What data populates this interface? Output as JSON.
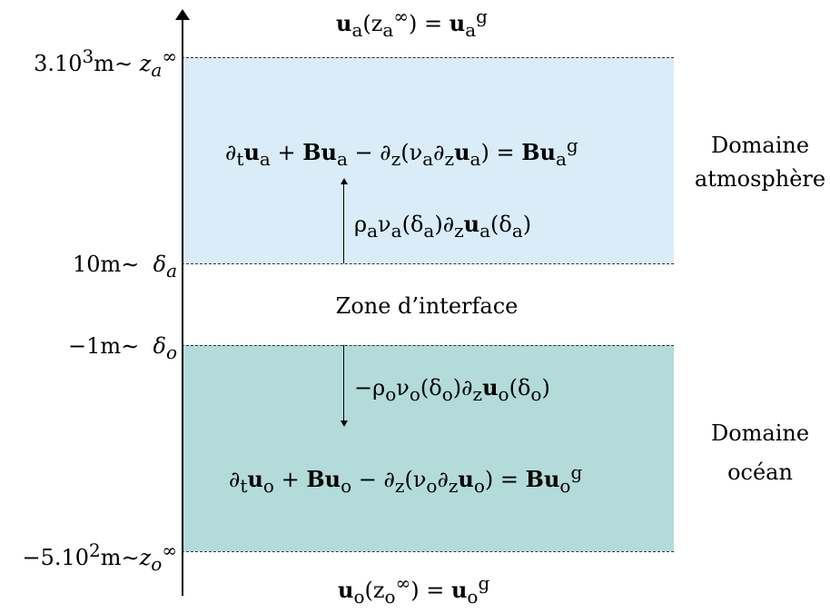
{
  "boundaries": {
    "top_condition": "u_a(z_a^∞) = u_a^g",
    "bottom_condition": "u_o(z_o^∞) = u_o^g"
  },
  "levels": {
    "atm_top": "3.10³m∼ z_a^∞",
    "atm_bottom": "10m∼  δ_a",
    "ocean_top": "−1m∼  δ_o",
    "ocean_bottom": "−5.10²m∼z_o^∞"
  },
  "atmosphere": {
    "equation": "∂_t u_a + B u_a − ∂_z(ν_a ∂_z u_a) = B u_a^g",
    "flux": "ρ_a ν_a(δ_a) ∂_z u_a(δ_a)",
    "label_line1": "Domaine",
    "label_line2": "atmosphère",
    "color": "#d9ecf8"
  },
  "interface": {
    "label": "Zone d’interface"
  },
  "ocean": {
    "equation": "∂_t u_o + B u_o − ∂_z(ν_o ∂_z u_o) = B u_o^g",
    "flux": "−ρ_o ν_o(δ_o) ∂_z u_o(δ_o)",
    "label_line1": "Domaine",
    "label_line2": "océan",
    "color": "#b3dbda"
  }
}
